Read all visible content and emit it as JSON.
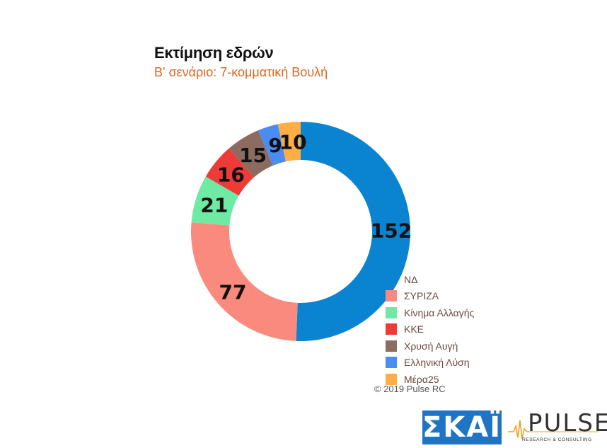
{
  "chart_data": {
    "type": "pie",
    "style": "donut",
    "title": "Εκτίμηση εδρών",
    "subtitle": "Β' σενάριο: 7-κομματική Βουλή",
    "categories": [
      "ΝΔ",
      "ΣΥΡΙΖΑ",
      "Κίνημα Αλλαγής",
      "ΚΚΕ",
      "Χρυσή Αυγή",
      "Ελληνική Λύση",
      "Μέρα25"
    ],
    "values": [
      152,
      77,
      21,
      16,
      15,
      9,
      10
    ],
    "labels": [
      "152",
      "77",
      "21",
      "16",
      "15",
      "9",
      "10"
    ],
    "colors": [
      "#0a84d0",
      "#fa8a7e",
      "#6eeaa4",
      "#ee3b37",
      "#8c6b61",
      "#4a8cf2",
      "#ffad45"
    ],
    "legend": "bottom-right",
    "total": 300
  },
  "legend_items": [
    {
      "label": "ΝΔ",
      "color": "#0a84d0"
    },
    {
      "label": "ΣΥΡΙΖΑ",
      "color": "#fa8a7e"
    },
    {
      "label": "Κίνημα Αλλαγής",
      "color": "#6eeaa4"
    },
    {
      "label": "ΚΚΕ",
      "color": "#ee3b37"
    },
    {
      "label": "Χρυσή Αυγή",
      "color": "#8c6b61"
    },
    {
      "label": "Ελληνική Λύση",
      "color": "#4a8cf2"
    },
    {
      "label": "Μέρα25",
      "color": "#ffad45"
    }
  ],
  "copyright": "© 2019 Pulse RC",
  "logos": {
    "skai": "ΣΚΑΪ",
    "pulse": "PULSE",
    "pulse_tagline": "RESEARCH & CONSULTING"
  }
}
